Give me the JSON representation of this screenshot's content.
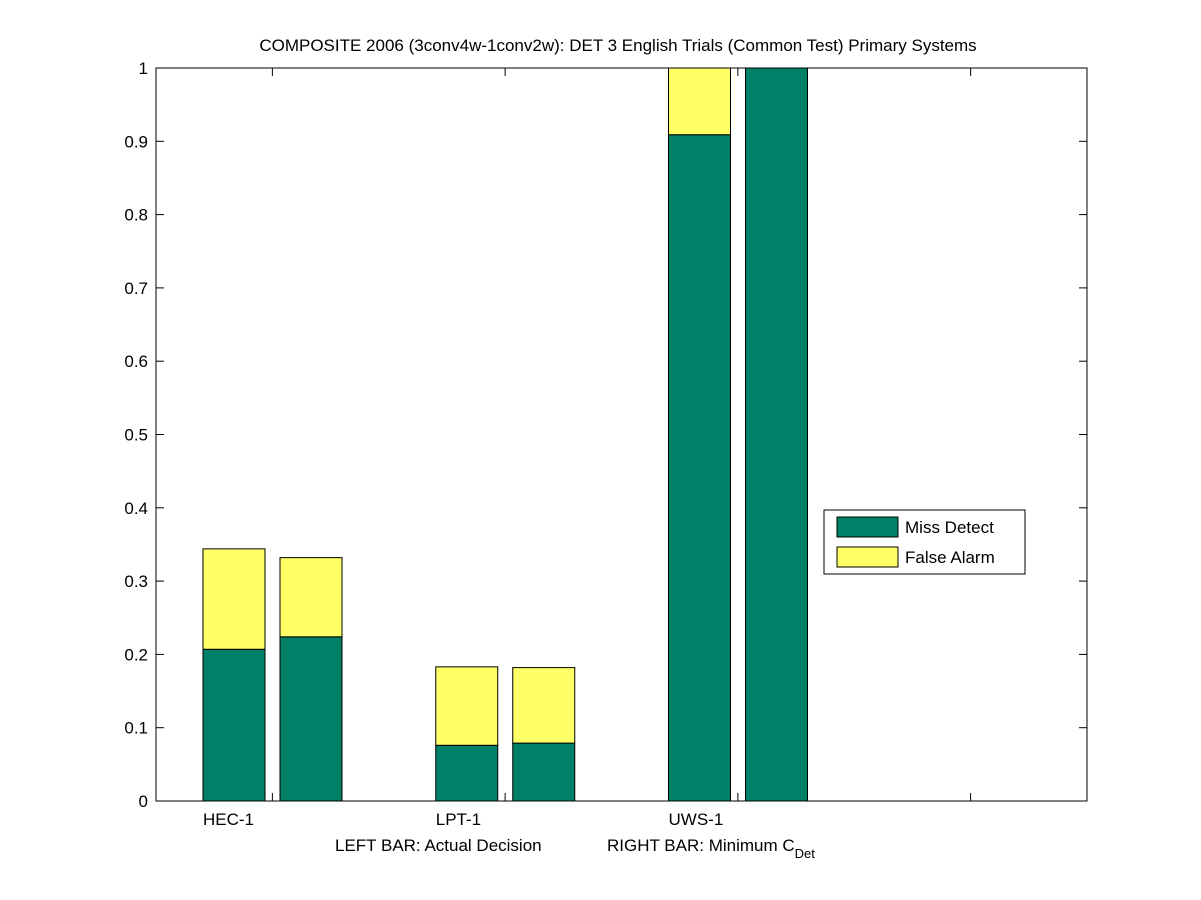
{
  "chart_data": {
    "type": "bar",
    "stacked": true,
    "title": "COMPOSITE 2006 (3conv4w-1conv2w): DET 3 English Trials (Common Test) Primary Systems",
    "xlabel": {
      "left": "LEFT BAR: Actual Decision",
      "right_main": "RIGHT BAR: Minimum C",
      "right_sub": "Det"
    },
    "ylabel": "",
    "ylim": [
      0,
      1
    ],
    "yticks": [
      "0",
      "0.1",
      "0.2",
      "0.3",
      "0.4",
      "0.5",
      "0.6",
      "0.7",
      "0.8",
      "0.9",
      "1"
    ],
    "categories": [
      "HEC-1",
      "LPT-1",
      "UWS-1"
    ],
    "bar_groups": [
      "Actual Decision",
      "Minimum CDet"
    ],
    "series": [
      {
        "name": "Miss Detect",
        "color": "#008066",
        "values": [
          [
            0.207,
            0.224
          ],
          [
            0.076,
            0.079
          ],
          [
            0.909,
            1.0
          ]
        ]
      },
      {
        "name": "False Alarm",
        "color": "#ffff66",
        "values": [
          [
            0.137,
            0.108
          ],
          [
            0.107,
            0.103
          ],
          [
            0.091,
            0.0
          ]
        ]
      }
    ],
    "legend_position": "right",
    "grid": false
  }
}
